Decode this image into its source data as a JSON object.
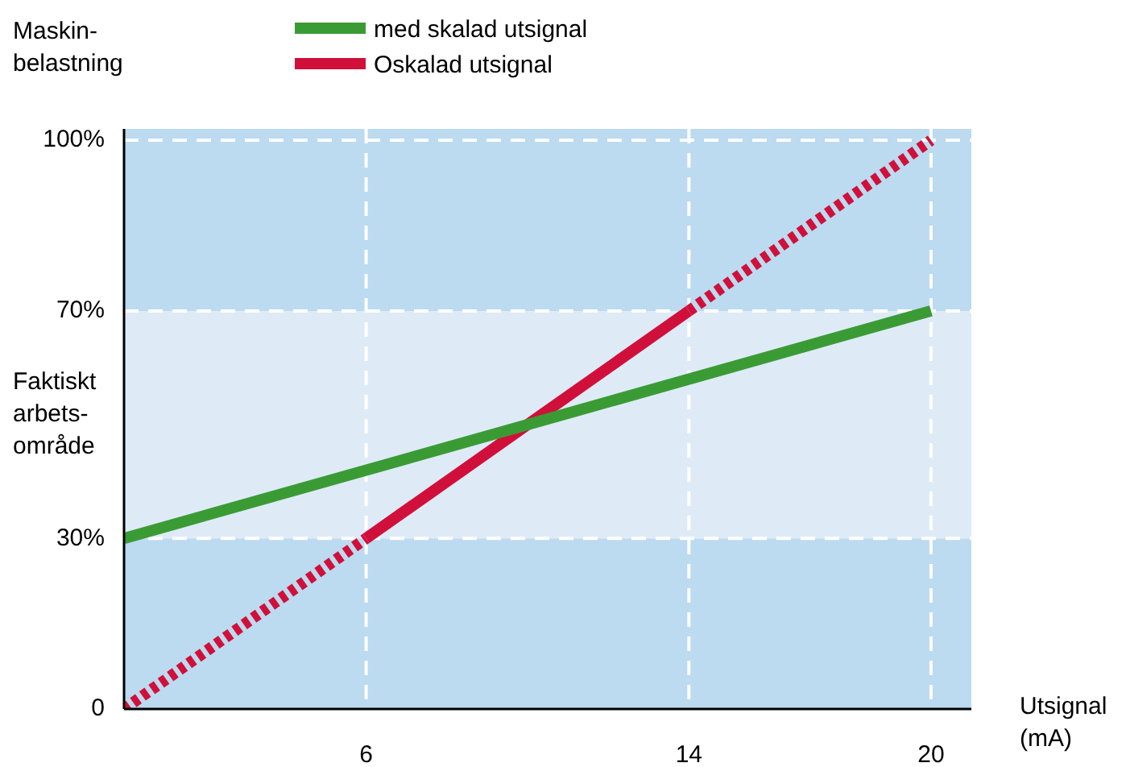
{
  "chart_data": {
    "type": "line",
    "xlabel": "Utsignal (mA)",
    "ylabel": "Maskin-belastning",
    "xlim": [
      0,
      21
    ],
    "xticks": [
      6,
      14,
      20
    ],
    "ylim": [
      0,
      102
    ],
    "yticks": [
      {
        "value": 0,
        "label": "0"
      },
      {
        "value": 30,
        "label": "30%"
      },
      {
        "value": 70,
        "label": "70%"
      },
      {
        "value": 100,
        "label": "100%"
      }
    ],
    "series": [
      {
        "name": "med skalad utsignal",
        "color": "#3a9b35",
        "x": [
          0,
          20
        ],
        "values": [
          30,
          70
        ],
        "line_style": "solid"
      },
      {
        "name": "Oskalad utsignal",
        "color": "#d0103a",
        "x": [
          6,
          14
        ],
        "values": [
          30,
          70
        ],
        "line_style": "solid"
      },
      {
        "color": "#d0103a",
        "x": [
          0,
          6,
          10,
          14,
          20
        ],
        "values": [
          0,
          30,
          null,
          70,
          100
        ],
        "line_style": "dotted"
      }
    ],
    "bands": [
      {
        "axis": "y",
        "from": 0,
        "to": 30,
        "color": "#bcdaf0"
      },
      {
        "axis": "y",
        "from": 30,
        "to": 70,
        "color": "#deebf7",
        "label": "Faktiskt arbets-område"
      },
      {
        "axis": "y",
        "from": 70,
        "to": 102,
        "color": "#bcdaf0"
      }
    ],
    "grid": true,
    "legend": "top left",
    "marker": "none"
  }
}
